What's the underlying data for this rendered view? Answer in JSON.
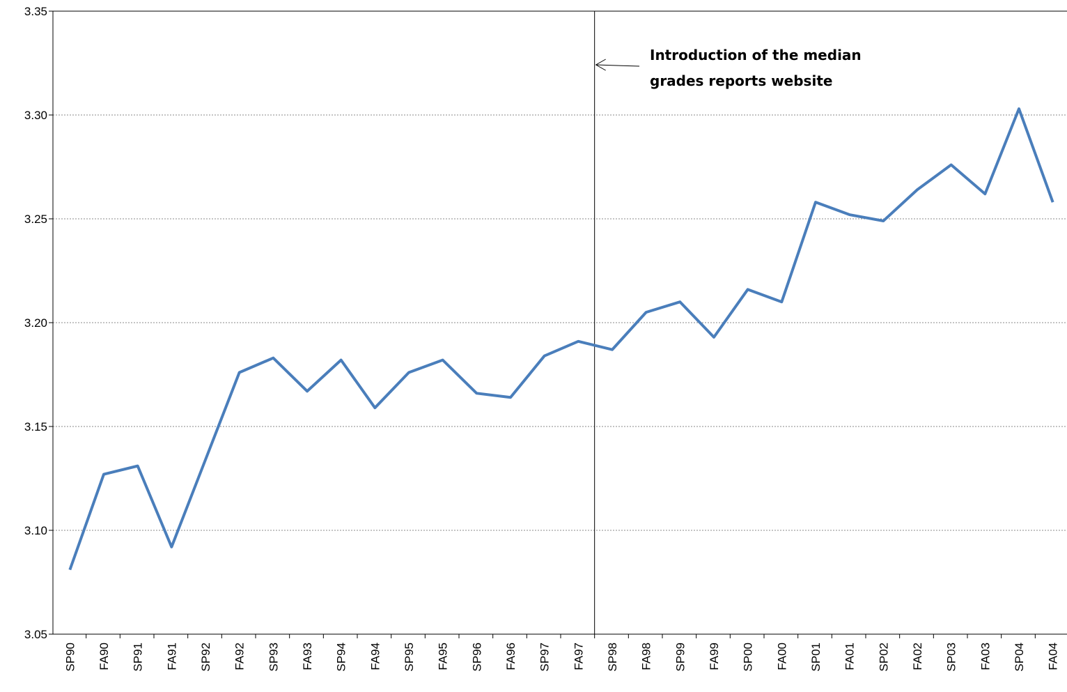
{
  "chart_data": {
    "type": "line",
    "categories": [
      "SP90",
      "FA90",
      "SP91",
      "FA91",
      "SP92",
      "FA92",
      "SP93",
      "FA93",
      "SP94",
      "FA94",
      "SP95",
      "FA95",
      "SP96",
      "FA96",
      "SP97",
      "FA97",
      "SP98",
      "FA98",
      "SP99",
      "FA99",
      "SP00",
      "FA00",
      "SP01",
      "FA01",
      "SP02",
      "FA02",
      "SP03",
      "FA03",
      "SP04",
      "FA04"
    ],
    "series": [
      {
        "color": "#4a7ebb",
        "values": [
          3.081,
          3.127,
          3.131,
          3.092,
          3.134,
          3.176,
          3.183,
          3.167,
          3.182,
          3.159,
          3.176,
          3.182,
          3.166,
          3.164,
          3.184,
          3.191,
          3.187,
          3.205,
          3.21,
          3.193,
          3.216,
          3.21,
          3.258,
          3.252,
          3.249,
          3.264,
          3.276,
          3.262,
          3.303,
          3.258
        ]
      }
    ],
    "ylim": [
      3.05,
      3.35
    ],
    "yticks": [
      3.05,
      {
        "value": 3.1,
        "label": "3.10"
      },
      3.15,
      {
        "value": 3.2,
        "label": "3.20"
      },
      3.25,
      {
        "value": 3.3,
        "label": "3.30"
      },
      3.35
    ],
    "grid": true,
    "annotation": [
      "Introduction of the median",
      "grades reports website"
    ]
  }
}
